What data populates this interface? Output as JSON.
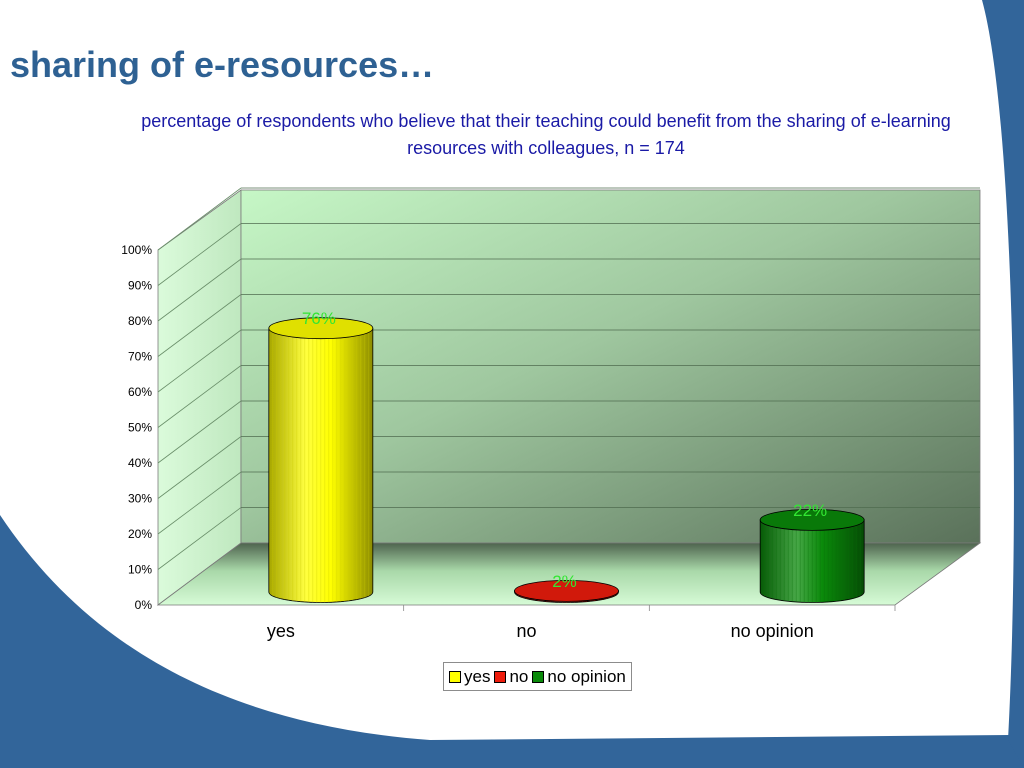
{
  "slide": {
    "title": "sharing of e-resources…"
  },
  "chart_data": {
    "type": "bar",
    "title": "percentage of respondents who believe that their teaching could benefit from the sharing of e-learning resources with colleagues, n = 174",
    "categories": [
      "yes",
      "no",
      "no opinion"
    ],
    "series": [
      {
        "name": "yes",
        "category": "yes",
        "value": 76,
        "label": "76%",
        "color": "#ffff00"
      },
      {
        "name": "no",
        "category": "no",
        "value": 2,
        "label": "2%",
        "color": "#ee1c0c"
      },
      {
        "name": "no opinion",
        "category": "no opinion",
        "value": 22,
        "label": "22%",
        "color": "#0a8a0a"
      }
    ],
    "y_ticks": [
      "0%",
      "10%",
      "20%",
      "30%",
      "40%",
      "50%",
      "60%",
      "70%",
      "80%",
      "90%",
      "100%"
    ],
    "ylim": [
      0,
      100
    ],
    "data_label_color": "#33e633",
    "grid": true,
    "legend_position": "bottom",
    "style": "3d-cylinder"
  }
}
